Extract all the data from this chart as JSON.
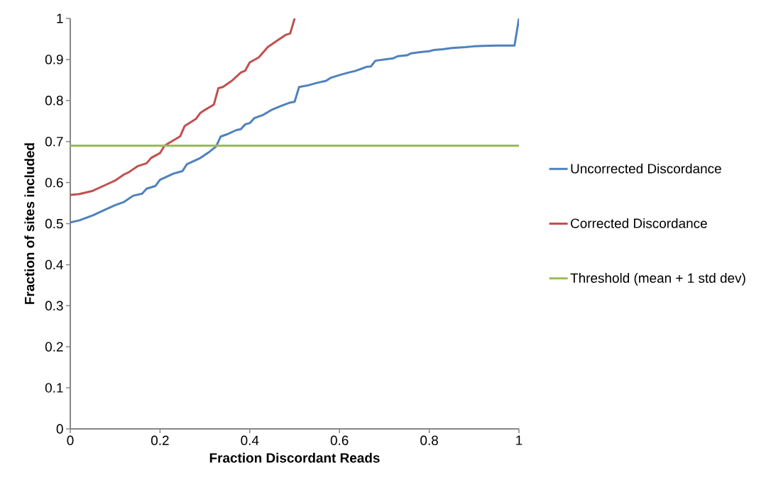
{
  "chart_data": {
    "type": "line",
    "xlabel": "Fraction Discordant Reads",
    "ylabel": "Fraction of sites included",
    "xlim": [
      0,
      1
    ],
    "ylim": [
      0,
      1
    ],
    "xticks": [
      0,
      0.2,
      0.4,
      0.6,
      0.8,
      1
    ],
    "yticks": [
      0,
      0.1,
      0.2,
      0.3,
      0.4,
      0.5,
      0.6,
      0.7,
      0.8,
      0.9,
      1
    ],
    "grid": false,
    "legend": "right",
    "marker": "none",
    "line_style": "solid",
    "series": [
      {
        "name": "Uncorrected Discordance",
        "color": "#4f81bd",
        "x": [
          0,
          0.02,
          0.05,
          0.08,
          0.1,
          0.12,
          0.14,
          0.16,
          0.17,
          0.19,
          0.2,
          0.23,
          0.25,
          0.26,
          0.28,
          0.29,
          0.31,
          0.325,
          0.335,
          0.35,
          0.37,
          0.38,
          0.39,
          0.4,
          0.41,
          0.43,
          0.45,
          0.47,
          0.49,
          0.5,
          0.51,
          0.53,
          0.55,
          0.57,
          0.58,
          0.6,
          0.62,
          0.635,
          0.66,
          0.67,
          0.68,
          0.7,
          0.72,
          0.73,
          0.75,
          0.76,
          0.78,
          0.8,
          0.81,
          0.83,
          0.85,
          0.88,
          0.9,
          0.92,
          0.95,
          0.99,
          1.0
        ],
        "values": [
          0.503,
          0.508,
          0.52,
          0.535,
          0.545,
          0.553,
          0.568,
          0.573,
          0.585,
          0.592,
          0.607,
          0.622,
          0.628,
          0.645,
          0.655,
          0.66,
          0.675,
          0.688,
          0.712,
          0.718,
          0.728,
          0.73,
          0.742,
          0.745,
          0.757,
          0.765,
          0.778,
          0.787,
          0.795,
          0.797,
          0.833,
          0.837,
          0.843,
          0.848,
          0.855,
          0.862,
          0.868,
          0.872,
          0.882,
          0.883,
          0.897,
          0.9,
          0.903,
          0.908,
          0.91,
          0.915,
          0.918,
          0.92,
          0.923,
          0.925,
          0.928,
          0.93,
          0.932,
          0.933,
          0.934,
          0.934,
          1.0
        ]
      },
      {
        "name": "Corrected Discordance",
        "color": "#c0504d",
        "x": [
          0,
          0.02,
          0.05,
          0.08,
          0.1,
          0.12,
          0.13,
          0.15,
          0.17,
          0.18,
          0.2,
          0.21,
          0.23,
          0.245,
          0.255,
          0.28,
          0.29,
          0.3,
          0.32,
          0.33,
          0.34,
          0.36,
          0.38,
          0.39,
          0.4,
          0.42,
          0.44,
          0.46,
          0.48,
          0.49,
          0.5
        ],
        "values": [
          0.57,
          0.572,
          0.58,
          0.595,
          0.605,
          0.62,
          0.625,
          0.64,
          0.647,
          0.66,
          0.672,
          0.69,
          0.703,
          0.713,
          0.738,
          0.755,
          0.77,
          0.777,
          0.79,
          0.83,
          0.833,
          0.848,
          0.868,
          0.873,
          0.893,
          0.905,
          0.93,
          0.945,
          0.96,
          0.963,
          1.0
        ]
      },
      {
        "name": "Threshold (mean + 1 std dev)",
        "color": "#9bbb59",
        "x": [
          0,
          1
        ],
        "values": [
          0.69,
          0.69
        ]
      }
    ]
  }
}
